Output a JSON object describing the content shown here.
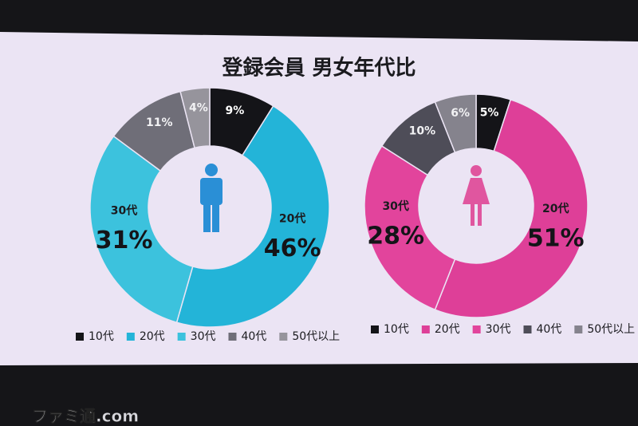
{
  "title": "登録会員 男女年代比",
  "watermark": "ファミ通.com",
  "chart_data": [
    {
      "type": "pie",
      "categories": [
        "10代",
        "20代",
        "30代",
        "40代",
        "50代以上"
      ],
      "values": [
        9,
        46,
        31,
        11,
        4
      ],
      "value_labels": [
        "9%",
        "46%",
        "31%",
        "11%",
        "4%"
      ],
      "colors": [
        "#141418",
        "#23b4d8",
        "#3cc2dd",
        "#6f6e78",
        "#96949c"
      ]
    },
    {
      "type": "pie",
      "categories": [
        "10代",
        "20代",
        "30代",
        "40代",
        "50代以上"
      ],
      "values": [
        5,
        51,
        28,
        10,
        6
      ],
      "value_labels": [
        "5%",
        "51%",
        "28%",
        "10%",
        "6%"
      ],
      "colors": [
        "#141418",
        "#de3f98",
        "#e2449c",
        "#4e4d58",
        "#85838d"
      ]
    }
  ]
}
